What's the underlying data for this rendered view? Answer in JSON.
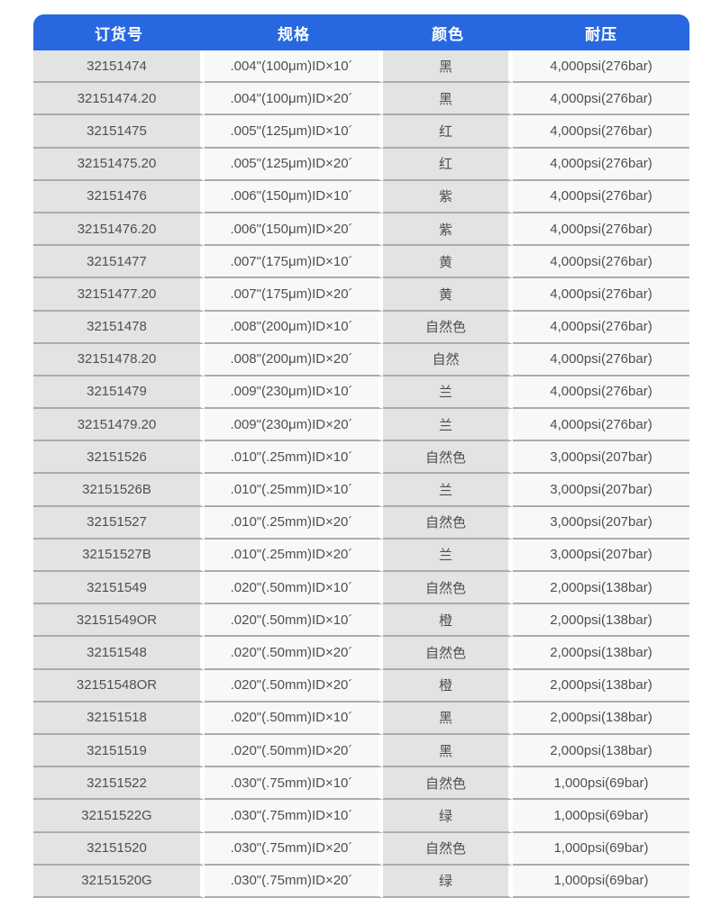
{
  "colors": {
    "header_bg": "#2768E1",
    "column_dark_bg": "#E3E3E3",
    "column_light_bg": "#F8F8F8",
    "row_separator": "#ACACAC",
    "body_text": "#4F4F4F",
    "header_text": "#FFFFFF"
  },
  "table": {
    "headers": [
      "订货号",
      "规格",
      "颜色",
      "耐压"
    ],
    "rows": [
      [
        "32151474",
        ".004\"(100μm)ID×10´",
        "黑",
        "4,000psi(276bar)"
      ],
      [
        "32151474.20",
        ".004\"(100μm)ID×20´",
        "黑",
        "4,000psi(276bar)"
      ],
      [
        "32151475",
        ".005\"(125μm)ID×10´",
        "红",
        "4,000psi(276bar)"
      ],
      [
        "32151475.20",
        ".005\"(125μm)ID×20´",
        "红",
        "4,000psi(276bar)"
      ],
      [
        "32151476",
        ".006\"(150μm)ID×10´",
        "紫",
        "4,000psi(276bar)"
      ],
      [
        "32151476.20",
        ".006\"(150μm)ID×20´",
        "紫",
        "4,000psi(276bar)"
      ],
      [
        "32151477",
        ".007\"(175μm)ID×10´",
        "黄",
        "4,000psi(276bar)"
      ],
      [
        "32151477.20",
        ".007\"(175μm)ID×20´",
        "黄",
        "4,000psi(276bar)"
      ],
      [
        "32151478",
        ".008\"(200μm)ID×10´",
        "自然色",
        "4,000psi(276bar)"
      ],
      [
        "32151478.20",
        ".008\"(200μm)ID×20´",
        "自然",
        "4,000psi(276bar)"
      ],
      [
        "32151479",
        ".009\"(230μm)ID×10´",
        "兰",
        "4,000psi(276bar)"
      ],
      [
        "32151479.20",
        ".009\"(230μm)ID×20´",
        "兰",
        "4,000psi(276bar)"
      ],
      [
        "32151526",
        ".010\"(.25mm)ID×10´",
        "自然色",
        "3,000psi(207bar)"
      ],
      [
        "32151526B",
        ".010\"(.25mm)ID×10´",
        "兰",
        "3,000psi(207bar)"
      ],
      [
        "32151527",
        ".010\"(.25mm)ID×20´",
        "自然色",
        "3,000psi(207bar)"
      ],
      [
        "32151527B",
        ".010\"(.25mm)ID×20´",
        "兰",
        "3,000psi(207bar)"
      ],
      [
        "32151549",
        ".020\"(.50mm)ID×10´",
        "自然色",
        "2,000psi(138bar)"
      ],
      [
        "32151549OR",
        ".020\"(.50mm)ID×10´",
        "橙",
        "2,000psi(138bar)"
      ],
      [
        "32151548",
        ".020\"(.50mm)ID×20´",
        "自然色",
        "2,000psi(138bar)"
      ],
      [
        "32151548OR",
        ".020\"(.50mm)ID×20´",
        "橙",
        "2,000psi(138bar)"
      ],
      [
        "32151518",
        ".020\"(.50mm)ID×10´",
        "黑",
        "2,000psi(138bar)"
      ],
      [
        "32151519",
        ".020\"(.50mm)ID×20´",
        "黑",
        "2,000psi(138bar)"
      ],
      [
        "32151522",
        ".030\"(.75mm)ID×10´",
        "自然色",
        "1,000psi(69bar)"
      ],
      [
        "32151522G",
        ".030\"(.75mm)ID×10´",
        "绿",
        "1,000psi(69bar)"
      ],
      [
        "32151520",
        ".030\"(.75mm)ID×20´",
        "自然色",
        "1,000psi(69bar)"
      ],
      [
        "32151520G",
        ".030\"(.75mm)ID×20´",
        "绿",
        "1,000psi(69bar)"
      ]
    ]
  }
}
